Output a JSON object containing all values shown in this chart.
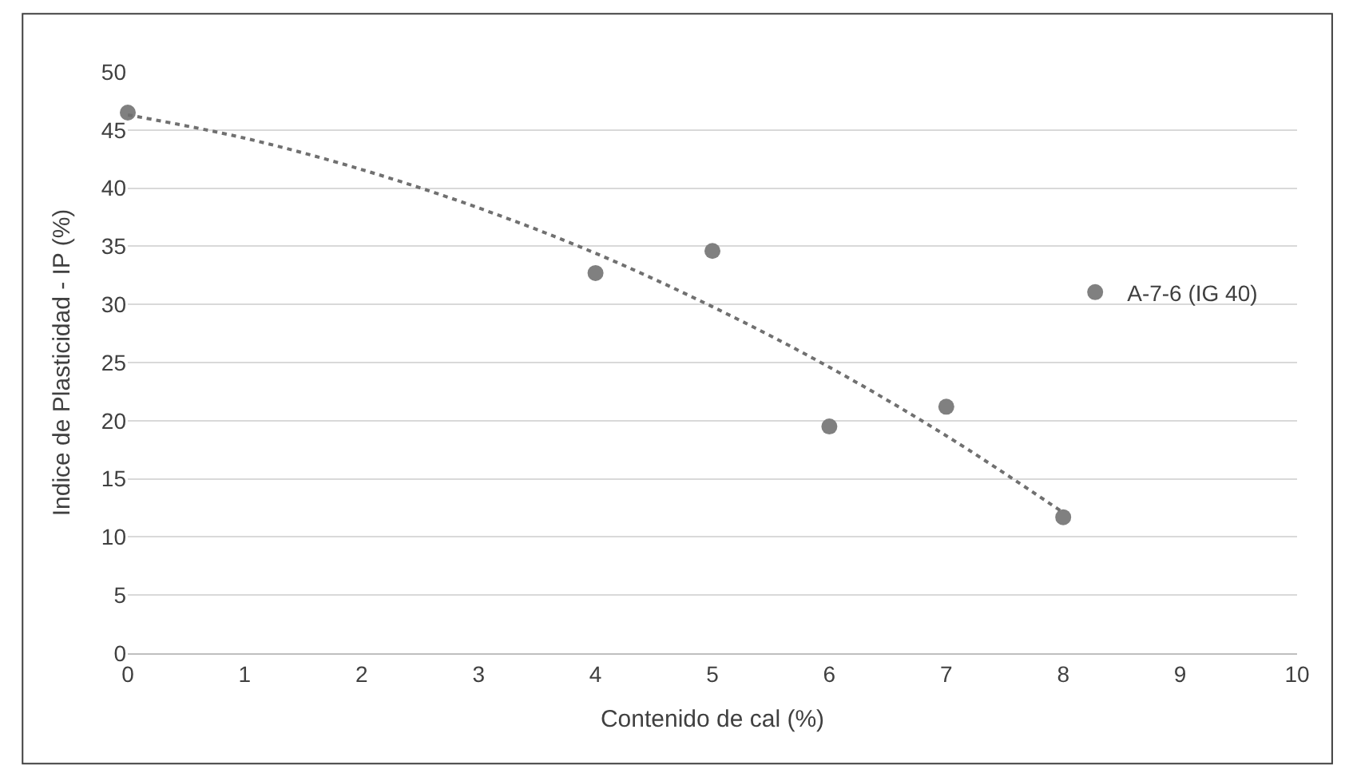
{
  "chart_data": {
    "type": "scatter",
    "xlabel": "Contenido de cal (%)",
    "ylabel": "Indice de Plasticidad - IP (%)",
    "xlim": [
      0,
      10
    ],
    "xticks": [
      0,
      1,
      2,
      3,
      4,
      5,
      6,
      7,
      8,
      9,
      10
    ],
    "ylim": [
      0,
      50
    ],
    "yticks": [
      0,
      5,
      10,
      15,
      20,
      25,
      30,
      35,
      40,
      45,
      50
    ],
    "grid": "y",
    "legend": "right",
    "series": [
      {
        "name": "A-7-6 (IG 40)",
        "color": "#808080",
        "marker": "circle",
        "x": [
          0,
          4,
          5,
          6,
          7,
          8
        ],
        "values": [
          46.5,
          32.7,
          34.6,
          19.5,
          21.2,
          11.7
        ]
      },
      {
        "type": "line",
        "color": "#707070",
        "line_style": "dotted",
        "x": [
          0,
          1,
          2,
          3,
          4,
          5,
          6,
          7,
          8
        ],
        "values": [
          46.3,
          44.3,
          41.6,
          38.3,
          34.4,
          29.8,
          24.6,
          18.7,
          12.1
        ]
      }
    ]
  }
}
